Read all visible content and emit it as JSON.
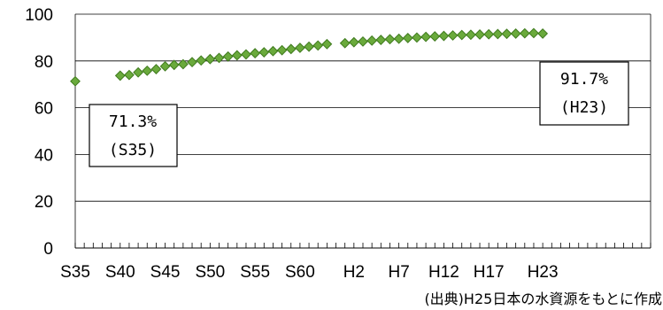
{
  "chart_data": {
    "type": "scatter",
    "title": "",
    "xlabel": "",
    "ylabel": "",
    "ylim": [
      0,
      100
    ],
    "yticks": [
      0,
      20,
      40,
      60,
      80,
      100
    ],
    "grid": true,
    "legend": "none",
    "x_tick_labels": [
      "S35",
      "S40",
      "S45",
      "S50",
      "S55",
      "S60",
      "H2",
      "H7",
      "H12",
      "H17",
      "H23"
    ],
    "series": [
      {
        "color": "#6aaa3c",
        "marker": "diamond",
        "points": [
          {
            "x": "S35",
            "y": 71.3
          },
          {
            "x": "S40",
            "y": 73.7
          },
          {
            "x": "S41",
            "y": 74.0
          },
          {
            "x": "S42",
            "y": 75.1
          },
          {
            "x": "S43",
            "y": 75.8
          },
          {
            "x": "S44",
            "y": 76.5
          },
          {
            "x": "S45",
            "y": 77.7
          },
          {
            "x": "S46",
            "y": 78.3
          },
          {
            "x": "S47",
            "y": 78.6
          },
          {
            "x": "S48",
            "y": 79.5
          },
          {
            "x": "S49",
            "y": 80.2
          },
          {
            "x": "S50",
            "y": 80.8
          },
          {
            "x": "S51",
            "y": 81.3
          },
          {
            "x": "S52",
            "y": 81.9
          },
          {
            "x": "S53",
            "y": 82.4
          },
          {
            "x": "S54",
            "y": 82.8
          },
          {
            "x": "S55",
            "y": 83.3
          },
          {
            "x": "S56",
            "y": 83.7
          },
          {
            "x": "S57",
            "y": 84.2
          },
          {
            "x": "S58",
            "y": 84.6
          },
          {
            "x": "S59",
            "y": 85.1
          },
          {
            "x": "S60",
            "y": 85.6
          },
          {
            "x": "S61",
            "y": 86.1
          },
          {
            "x": "S62",
            "y": 86.6
          },
          {
            "x": "S63",
            "y": 87.2
          },
          {
            "x": "H1",
            "y": 87.6
          },
          {
            "x": "H2",
            "y": 88.0
          },
          {
            "x": "H3",
            "y": 88.3
          },
          {
            "x": "H4",
            "y": 88.7
          },
          {
            "x": "H5",
            "y": 89.0
          },
          {
            "x": "H6",
            "y": 89.3
          },
          {
            "x": "H7",
            "y": 89.5
          },
          {
            "x": "H8",
            "y": 89.8
          },
          {
            "x": "H9",
            "y": 90.0
          },
          {
            "x": "H10",
            "y": 90.3
          },
          {
            "x": "H11",
            "y": 90.5
          },
          {
            "x": "H12",
            "y": 90.7
          },
          {
            "x": "H13",
            "y": 90.9
          },
          {
            "x": "H14",
            "y": 91.1
          },
          {
            "x": "H15",
            "y": 91.2
          },
          {
            "x": "H16",
            "y": 91.3
          },
          {
            "x": "H17",
            "y": 91.4
          },
          {
            "x": "H18",
            "y": 91.5
          },
          {
            "x": "H19",
            "y": 91.6
          },
          {
            "x": "H20",
            "y": 91.7
          },
          {
            "x": "H21",
            "y": 91.8
          },
          {
            "x": "H22",
            "y": 91.9
          },
          {
            "x": "H23",
            "y": 91.7
          }
        ]
      }
    ],
    "annotations": [
      {
        "line1": "71.3%",
        "line2": "(S35)",
        "point": "S35"
      },
      {
        "line1": "91.7%",
        "line2": "(H23)",
        "point": "H23"
      }
    ],
    "source": "(出典)H25日本の水資源をもとに作成"
  }
}
